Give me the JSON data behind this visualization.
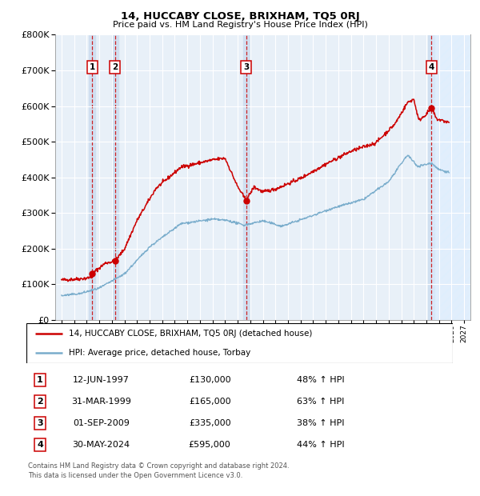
{
  "title": "14, HUCCABY CLOSE, BRIXHAM, TQ5 0RJ",
  "subtitle": "Price paid vs. HM Land Registry's House Price Index (HPI)",
  "legend_line1": "14, HUCCABY CLOSE, BRIXHAM, TQ5 0RJ (detached house)",
  "legend_line2": "HPI: Average price, detached house, Torbay",
  "transactions": [
    {
      "num": 1,
      "date": "12-JUN-1997",
      "price": 130000,
      "pct": "48%",
      "dir": "↑",
      "year": 1997.44
    },
    {
      "num": 2,
      "date": "31-MAR-1999",
      "price": 165000,
      "pct": "63%",
      "dir": "↑",
      "year": 1999.25
    },
    {
      "num": 3,
      "date": "01-SEP-2009",
      "price": 335000,
      "pct": "38%",
      "dir": "↑",
      "year": 2009.67
    },
    {
      "num": 4,
      "date": "30-MAY-2024",
      "price": 595000,
      "pct": "44%",
      "dir": "↑",
      "year": 2024.41
    }
  ],
  "red_line_color": "#cc0000",
  "blue_line_color": "#7aadcc",
  "plot_bg": "#e8f0f8",
  "vline_color": "#cc0000",
  "grid_color": "#ffffff",
  "span_color": "#ccddf0",
  "footer": "Contains HM Land Registry data © Crown copyright and database right 2024.\nThis data is licensed under the Open Government Licence v3.0.",
  "ylim": [
    0,
    800000
  ],
  "ytick_step": 100000,
  "xmin": 1994.5,
  "xmax": 2027.5,
  "future_x": 2024.41
}
